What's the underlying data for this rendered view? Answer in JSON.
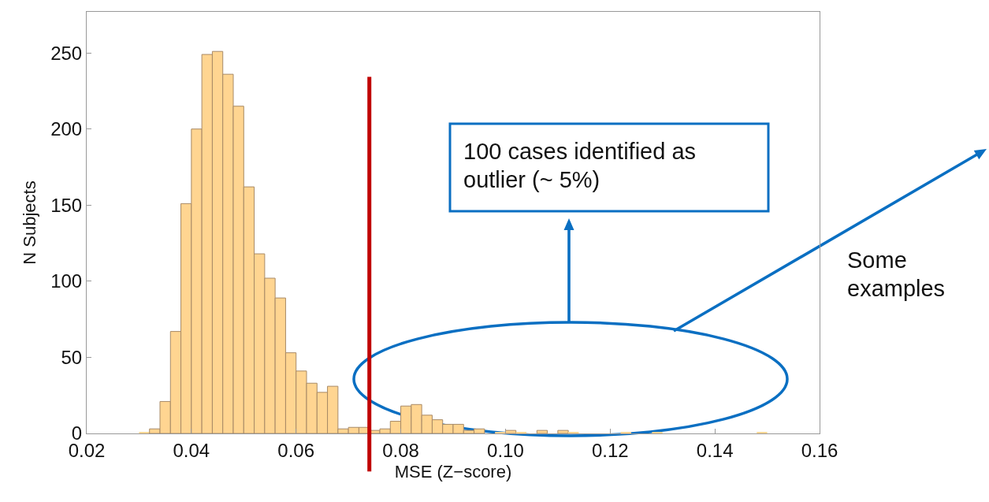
{
  "chart_data": {
    "type": "histogram",
    "xlabel": "MSE (Z−score)",
    "ylabel": "N Subjects",
    "bins": [
      0.03,
      0.032,
      0.034,
      0.036,
      0.038,
      0.04,
      0.042,
      0.044,
      0.046,
      0.048,
      0.05,
      0.052,
      0.054,
      0.056,
      0.058,
      0.06,
      0.062,
      0.064,
      0.066,
      0.068,
      0.07,
      0.072,
      0.074,
      0.076,
      0.078,
      0.08,
      0.082,
      0.084,
      0.086,
      0.088,
      0.09,
      0.092,
      0.094,
      0.096,
      0.098,
      0.1,
      0.102,
      0.104,
      0.106,
      0.108,
      0.11,
      0.112,
      0.114,
      0.116,
      0.118,
      0.12,
      0.122,
      0.124,
      0.126,
      0.128,
      0.13,
      0.132,
      0.134,
      0.136,
      0.138,
      0.14,
      0.142,
      0.144,
      0.146,
      0.148,
      0.15
    ],
    "values": [
      1,
      3,
      21,
      67,
      151,
      200,
      249,
      251,
      236,
      215,
      162,
      118,
      102,
      89,
      53,
      41,
      33,
      27,
      31,
      3,
      4,
      4,
      2,
      3,
      8,
      18,
      19,
      12,
      9,
      6,
      6,
      2,
      3,
      0,
      1,
      2,
      1,
      0,
      2,
      0,
      2,
      1,
      0,
      0,
      0,
      0,
      1,
      0,
      0,
      1,
      0,
      0,
      0,
      0,
      0,
      0,
      0,
      0,
      0,
      1
    ],
    "color": "#ffd591",
    "xlim": [
      0.02,
      0.16
    ],
    "xticks": [
      0.02,
      {
        "value": 0.04,
        "label": "0.04"
      },
      {
        "value": 0.06,
        "label": "0.06"
      },
      {
        "value": 0.08,
        "label": "0.08"
      },
      {
        "value": 0.1,
        "label": "0.10"
      },
      {
        "value": 0.12,
        "label": "0.12"
      },
      {
        "value": 0.14,
        "label": "0.14"
      },
      {
        "value": 0.16,
        "label": "0.16"
      }
    ],
    "ylim": [
      0,
      277
    ],
    "yticks": [
      0,
      50,
      100,
      150,
      200,
      250
    ],
    "ref_lines": [
      {
        "axis": "x",
        "value": 0.074,
        "color": "#c00000"
      }
    ],
    "annotations": [
      "100 cases identified as outlier (~ 5%)",
      "Some examples"
    ],
    "grid": false
  }
}
